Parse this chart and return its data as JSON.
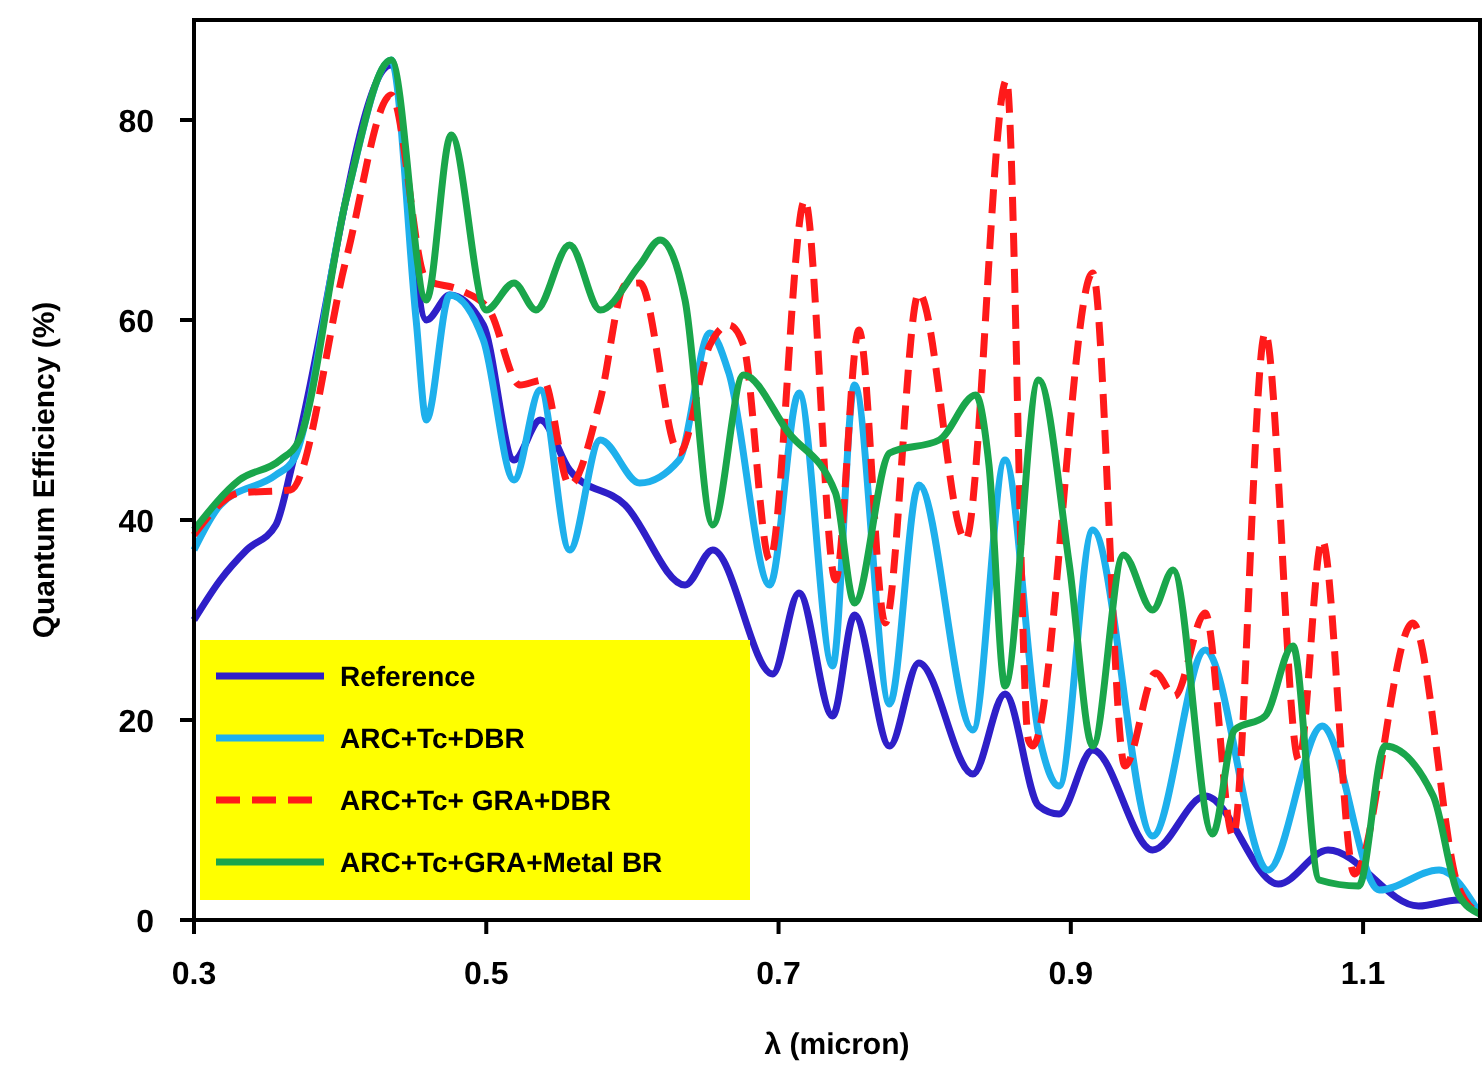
{
  "chart_data": {
    "type": "line",
    "xlabel": "λ (micron)",
    "ylabel": "Quantum Efficiency (%)",
    "xlim": [
      0.3,
      1.18
    ],
    "ylim": [
      0,
      90
    ],
    "xticks": [
      0.3,
      0.5,
      0.7,
      0.9,
      1.1
    ],
    "yticks": [
      0,
      20,
      40,
      60,
      80
    ],
    "grid": false,
    "legend": "bottom left",
    "series": [
      {
        "name": "Reference",
        "color": "#2e1fc8",
        "line_style": "solid",
        "x": [
          0.3,
          0.318,
          0.336,
          0.356,
          0.368,
          0.435,
          0.459,
          0.475,
          0.498,
          0.519,
          0.537,
          0.557,
          0.595,
          0.636,
          0.655,
          0.696,
          0.714,
          0.737,
          0.752,
          0.776,
          0.796,
          0.833,
          0.855,
          0.878,
          0.892,
          0.915,
          0.956,
          0.992,
          1.042,
          1.076,
          1.138,
          1.165,
          1.18
        ],
        "values": [
          30,
          34,
          37,
          39.5,
          46,
          85.5,
          60,
          62.5,
          59.5,
          46,
          50,
          45,
          41.5,
          33.5,
          37,
          24.6,
          32.7,
          20.4,
          30.5,
          17.4,
          25.7,
          14.6,
          22.6,
          11.4,
          10.6,
          17,
          7,
          12.4,
          3.6,
          7,
          1.4,
          2,
          0.6
        ]
      },
      {
        "name": "ARC+Tc+DBR",
        "color": "#1eb0ec",
        "line_style": "solid",
        "x": [
          0.3,
          0.318,
          0.356,
          0.368,
          0.404,
          0.435,
          0.452,
          0.459,
          0.475,
          0.498,
          0.519,
          0.537,
          0.557,
          0.578,
          0.605,
          0.632,
          0.653,
          0.666,
          0.694,
          0.714,
          0.737,
          0.752,
          0.776,
          0.796,
          0.833,
          0.855,
          0.878,
          0.892,
          0.915,
          0.956,
          0.992,
          1.035,
          1.072,
          1.111,
          1.152,
          1.18
        ],
        "values": [
          37,
          41.5,
          44.5,
          46,
          72,
          86,
          60,
          50,
          62.5,
          58,
          44,
          53,
          37,
          48,
          43.7,
          46,
          58.7,
          54.7,
          33.5,
          52.7,
          25.4,
          53.5,
          21.6,
          43.5,
          19,
          46,
          18.6,
          13.4,
          39,
          8.4,
          27,
          5,
          19.4,
          3,
          5,
          0.6
        ]
      },
      {
        "name": "ARC+Tc+ GRA+DBR",
        "color": "#ff1a1a",
        "line_style": "dashed",
        "x": [
          0.3,
          0.331,
          0.366,
          0.404,
          0.435,
          0.459,
          0.482,
          0.502,
          0.523,
          0.539,
          0.557,
          0.578,
          0.595,
          0.605,
          0.632,
          0.653,
          0.666,
          0.676,
          0.694,
          0.718,
          0.739,
          0.755,
          0.773,
          0.796,
          0.828,
          0.856,
          0.871,
          0.874,
          0.915,
          0.937,
          0.958,
          0.971,
          0.992,
          1.011,
          1.033,
          1.056,
          1.072,
          1.094,
          1.134,
          1.165,
          1.18
        ],
        "values": [
          38.5,
          42.7,
          43,
          66,
          82.5,
          64,
          63,
          61,
          53.5,
          54,
          43.5,
          52,
          63.5,
          63.7,
          46.7,
          57.5,
          59.5,
          57.5,
          36,
          72,
          34,
          59,
          29.7,
          62.7,
          38,
          84,
          18,
          17.4,
          64.7,
          15.4,
          24.7,
          22.4,
          30.7,
          8.4,
          58.7,
          16,
          38,
          4.6,
          29.7,
          3.4,
          0.6
        ]
      },
      {
        "name": "ARC+Tc+GRA+Metal BR",
        "color": "#1aa64b",
        "line_style": "solid",
        "x": [
          0.3,
          0.331,
          0.359,
          0.372,
          0.404,
          0.435,
          0.459,
          0.476,
          0.5,
          0.519,
          0.534,
          0.557,
          0.578,
          0.605,
          0.619,
          0.636,
          0.655,
          0.676,
          0.707,
          0.739,
          0.752,
          0.776,
          0.81,
          0.835,
          0.844,
          0.855,
          0.878,
          0.899,
          0.915,
          0.936,
          0.956,
          0.97,
          0.997,
          1.012,
          1.033,
          1.052,
          1.07,
          1.097,
          1.115,
          1.148,
          1.165,
          1.18
        ],
        "values": [
          39,
          44,
          46,
          48,
          72,
          86,
          62,
          78.5,
          61,
          63.7,
          61,
          67.5,
          61,
          65.5,
          68,
          62,
          39.5,
          54.5,
          48.7,
          42.7,
          31.7,
          46.7,
          48,
          52.5,
          45.5,
          23.4,
          54,
          35.5,
          17.4,
          36.5,
          31,
          35,
          8.6,
          19,
          20.4,
          27.4,
          4,
          3.4,
          17.4,
          12.4,
          2.6,
          0.6
        ]
      }
    ]
  }
}
